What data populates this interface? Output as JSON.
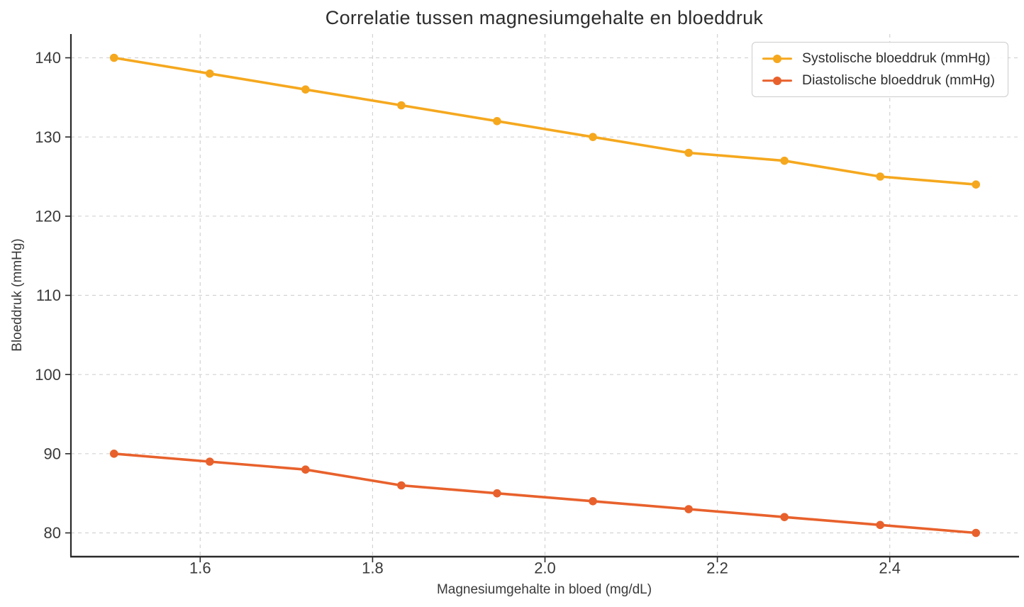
{
  "chart_data": {
    "type": "line",
    "title": "Correlatie tussen magnesiumgehalte en bloeddruk",
    "xlabel": "Magnesiumgehalte in bloed (mg/dL)",
    "ylabel": "Bloeddruk (mmHg)",
    "x": [
      1.5,
      1.6111,
      1.7222,
      1.8333,
      1.9444,
      2.0556,
      2.1667,
      2.2778,
      2.3889,
      2.5
    ],
    "series": [
      {
        "name": "Systolische bloeddruk (mmHg)",
        "color": "#F5A81E",
        "values": [
          140,
          138,
          136,
          134,
          132,
          130,
          128,
          127,
          125,
          124
        ]
      },
      {
        "name": "Diastolische bloeddruk (mmHg)",
        "color": "#E8612C",
        "values": [
          90,
          89,
          88,
          86,
          85,
          84,
          83,
          82,
          81,
          80
        ]
      }
    ],
    "xticks": [
      1.6,
      1.8,
      2.0,
      2.2,
      2.4
    ],
    "xtick_labels": [
      "1.6",
      "1.8",
      "2.0",
      "2.2",
      "2.4"
    ],
    "yticks": [
      80,
      90,
      100,
      110,
      120,
      130,
      140
    ],
    "xlim": [
      1.45,
      2.55
    ],
    "ylim": [
      77,
      143
    ],
    "grid": true,
    "grid_style": "dashed",
    "legend_position": "top-right",
    "colors": {
      "grid": "#d3d3d3",
      "spine": "#2a2a2a",
      "tick_label": "#3a3a3a",
      "background": "#ffffff"
    }
  }
}
